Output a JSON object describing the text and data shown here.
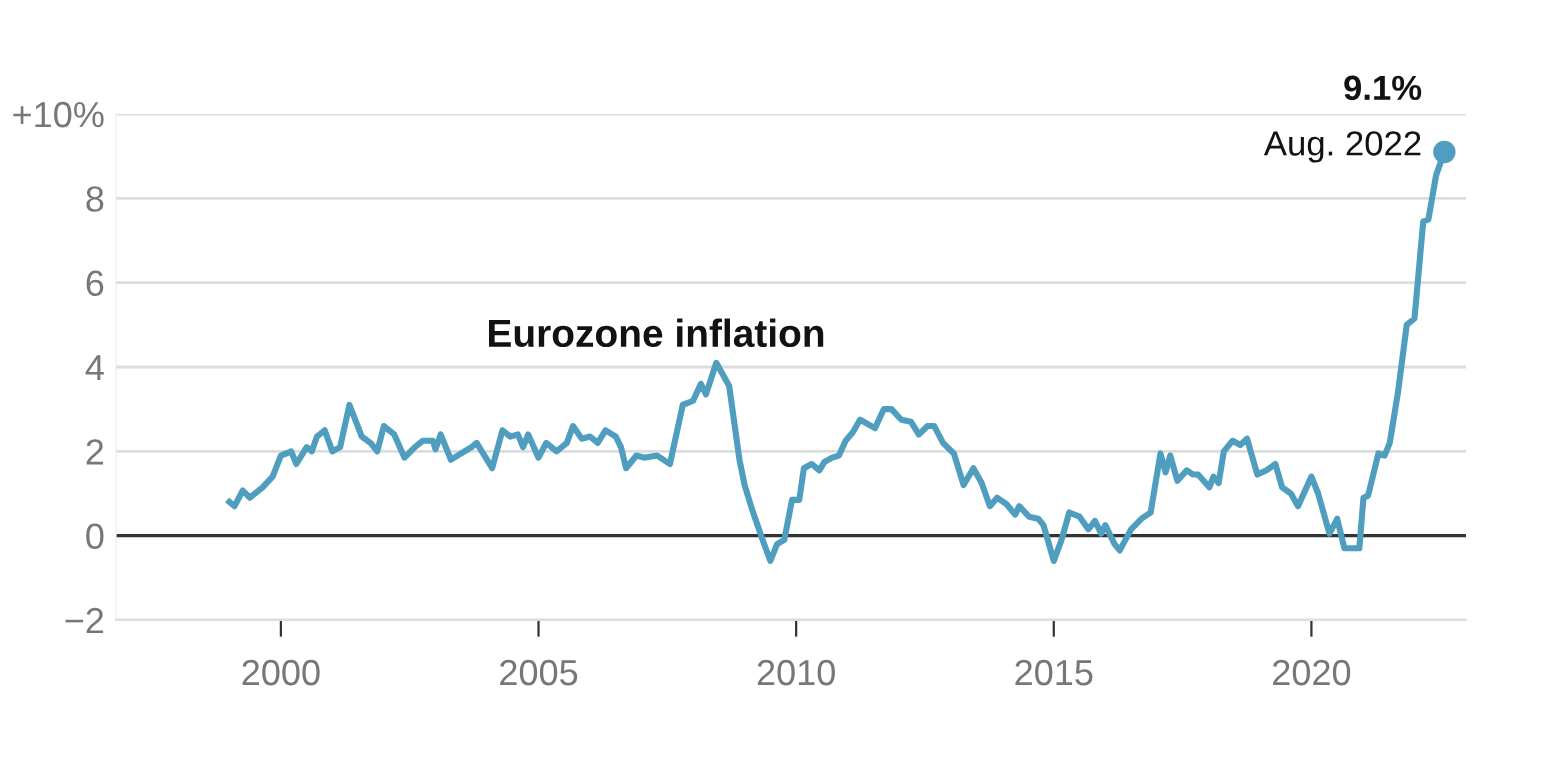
{
  "chart_data": {
    "type": "line",
    "title": "Eurozone inflation",
    "series": [
      {
        "color": "#4f9ec0",
        "x": [
          1999.0,
          1999.1,
          1999.26,
          1999.4,
          1999.65,
          1999.84,
          2000.0,
          2000.2,
          2000.3,
          2000.5,
          2000.6,
          2000.7,
          2000.85,
          2001.0,
          2001.15,
          2001.33,
          2001.57,
          2001.74,
          2001.87,
          2002.0,
          2002.2,
          2002.4,
          2002.6,
          2002.75,
          2002.95,
          2003.0,
          2003.1,
          2003.3,
          2003.5,
          2003.7,
          2003.8,
          2003.9,
          2004.1,
          2004.3,
          2004.45,
          2004.6,
          2004.7,
          2004.8,
          2005.0,
          2005.15,
          2005.35,
          2005.55,
          2005.67,
          2005.84,
          2006.0,
          2006.15,
          2006.3,
          2006.5,
          2006.6,
          2006.7,
          2006.9,
          2007.05,
          2007.3,
          2007.55,
          2007.8,
          2008.0,
          2008.15,
          2008.25,
          2008.45,
          2008.7,
          2008.9,
          2009.0,
          2009.15,
          2009.35,
          2009.5,
          2009.63,
          2009.77,
          2009.92,
          2010.06,
          2010.15,
          2010.3,
          2010.45,
          2010.55,
          2010.7,
          2010.83,
          2010.96,
          2011.1,
          2011.24,
          2011.53,
          2011.7,
          2011.85,
          2012.04,
          2012.23,
          2012.38,
          2012.55,
          2012.68,
          2012.85,
          2013.06,
          2013.25,
          2013.44,
          2013.6,
          2013.76,
          2013.9,
          2014.08,
          2014.25,
          2014.33,
          2014.52,
          2014.7,
          2014.8,
          2015.0,
          2015.15,
          2015.3,
          2015.5,
          2015.67,
          2015.8,
          2015.92,
          2016.0,
          2016.18,
          2016.28,
          2016.5,
          2016.7,
          2016.88,
          2017.07,
          2017.17,
          2017.26,
          2017.4,
          2017.58,
          2017.7,
          2017.8,
          2018.02,
          2018.1,
          2018.2,
          2018.3,
          2018.47,
          2018.62,
          2018.75,
          2018.95,
          2019.13,
          2019.3,
          2019.43,
          2019.6,
          2019.74,
          2020.0,
          2020.13,
          2020.35,
          2020.5,
          2020.64,
          2020.93,
          2021.01,
          2021.1,
          2021.3,
          2021.42,
          2021.52,
          2021.68,
          2021.85,
          2022.0,
          2022.17,
          2022.27,
          2022.42,
          2022.58
        ],
        "values": [
          0.8,
          0.7,
          1.07,
          0.9,
          1.15,
          1.4,
          1.9,
          2.0,
          1.7,
          2.1,
          2.0,
          2.35,
          2.5,
          2.0,
          2.1,
          3.1,
          2.35,
          2.2,
          2.0,
          2.6,
          2.4,
          1.85,
          2.1,
          2.25,
          2.25,
          2.05,
          2.4,
          1.8,
          1.95,
          2.1,
          2.2,
          2.0,
          1.6,
          2.5,
          2.35,
          2.4,
          2.1,
          2.4,
          1.85,
          2.2,
          2.0,
          2.2,
          2.6,
          2.3,
          2.35,
          2.2,
          2.5,
          2.35,
          2.1,
          1.6,
          1.9,
          1.85,
          1.9,
          1.7,
          3.1,
          3.2,
          3.6,
          3.35,
          4.1,
          3.55,
          1.8,
          1.2,
          0.6,
          -0.1,
          -0.6,
          -0.2,
          -0.1,
          0.85,
          0.85,
          1.6,
          1.7,
          1.55,
          1.75,
          1.85,
          1.9,
          2.25,
          2.45,
          2.75,
          2.55,
          3.0,
          3.0,
          2.75,
          2.7,
          2.4,
          2.6,
          2.6,
          2.2,
          1.95,
          1.2,
          1.6,
          1.25,
          0.7,
          0.9,
          0.75,
          0.5,
          0.7,
          0.45,
          0.4,
          0.25,
          -0.6,
          -0.1,
          0.55,
          0.45,
          0.15,
          0.35,
          0.05,
          0.25,
          -0.2,
          -0.35,
          0.15,
          0.4,
          0.55,
          1.95,
          1.5,
          1.9,
          1.3,
          1.55,
          1.45,
          1.45,
          1.15,
          1.4,
          1.25,
          2.0,
          2.25,
          2.15,
          2.3,
          1.45,
          1.55,
          1.7,
          1.15,
          1.0,
          0.7,
          1.4,
          1.0,
          0.05,
          0.4,
          -0.3,
          -0.3,
          0.9,
          0.95,
          1.95,
          1.9,
          2.2,
          3.4,
          5.0,
          5.15,
          7.45,
          7.5,
          8.55,
          9.1
        ]
      },
      {
        "type": "scatter",
        "color": "#4f9ec0",
        "x": [
          2022.58
        ],
        "values": [
          9.1
        ]
      }
    ],
    "annotations": [
      {
        "text": "9.1%",
        "x": 2022.58,
        "y": 9.1
      },
      {
        "text": "Aug. 2022",
        "x": 2022.58,
        "y": 9.1
      }
    ],
    "xlim": [
      1996.8,
      2023.0
    ],
    "xticks": [
      2000,
      2005,
      2010,
      2015,
      2020
    ],
    "ylim": [
      -2,
      10
    ],
    "yticks": [
      {
        "value": -2,
        "label": "−2"
      },
      0,
      2,
      4,
      6,
      8,
      {
        "value": 10,
        "label": "+10%"
      }
    ],
    "ref_lines": [
      {
        "axis": "y",
        "value": 0,
        "color": "#333333"
      }
    ],
    "grid": "y"
  }
}
